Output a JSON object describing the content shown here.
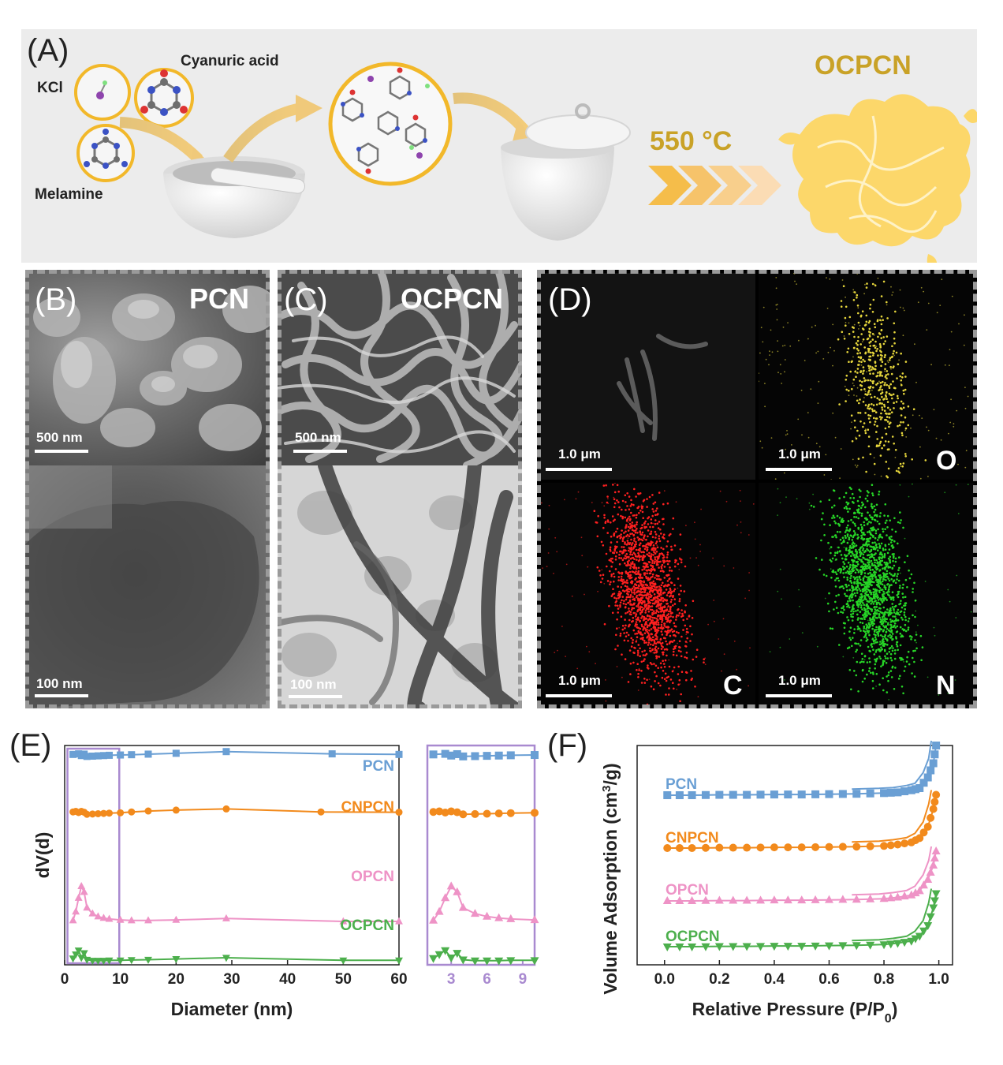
{
  "panels": {
    "a": {
      "label": "(A)",
      "kcl": "KCl",
      "cyanuric": "Cyanuric acid",
      "melamine": "Melamine",
      "temp": "550 °C",
      "product": "OCPCN"
    },
    "b": {
      "label": "(B)",
      "title": "PCN",
      "sem_scale": "500 nm",
      "tem_scale": "100 nm"
    },
    "c": {
      "label": "(C)",
      "title": "OCPCN",
      "sem_scale": "500 nm",
      "tem_scale": "100 nm"
    },
    "d": {
      "label": "(D)",
      "scale": "1.0 μm",
      "elements": [
        "O",
        "C",
        "N"
      ]
    },
    "e": {
      "label": "(E)"
    },
    "f": {
      "label": "(F)"
    }
  },
  "colors": {
    "PCN": "#6a9fd4",
    "CNPCN": "#f28a1c",
    "OPCN": "#ee93c6",
    "OCPCN": "#4caf4c",
    "inset_box": "#a98ad0",
    "gold": "#c9a227",
    "product_fill": "#fcd76a"
  },
  "chart_data": [
    {
      "panel": "E",
      "type": "line",
      "xlabel": "Diameter (nm)",
      "ylabel": "dV(d)",
      "xlim": [
        0,
        60
      ],
      "xticks": [
        0,
        10,
        20,
        30,
        40,
        50,
        60
      ],
      "y_ticks_shown": false,
      "series": [
        {
          "name": "PCN",
          "marker": "square",
          "x": [
            1.5,
            2.5,
            3,
            3.5,
            4,
            5,
            6,
            7,
            8,
            10,
            12,
            15,
            20,
            29,
            48,
            60
          ],
          "y": [
            0.88,
            0.9,
            0.84,
            0.89,
            0.81,
            0.82,
            0.83,
            0.84,
            0.85,
            0.86,
            0.87,
            0.89,
            0.92,
            0.98,
            0.9,
            0.88
          ]
        },
        {
          "name": "CNPCN",
          "marker": "circle",
          "x": [
            1.5,
            2,
            2.5,
            3,
            3.5,
            4,
            5,
            6,
            7,
            8,
            10,
            12,
            15,
            20,
            29,
            46,
            60
          ],
          "y": [
            0.6,
            0.62,
            0.58,
            0.62,
            0.59,
            0.52,
            0.53,
            0.54,
            0.55,
            0.56,
            0.57,
            0.6,
            0.63,
            0.66,
            0.7,
            0.6,
            0.59
          ]
        },
        {
          "name": "OPCN",
          "marker": "triangle-up",
          "x": [
            1.5,
            2,
            2.5,
            3,
            3.5,
            4,
            5,
            6,
            7,
            8,
            10,
            12,
            15,
            20,
            29,
            50,
            60
          ],
          "y": [
            0.02,
            0.2,
            0.48,
            0.72,
            0.6,
            0.28,
            0.16,
            0.1,
            0.07,
            0.05,
            0.03,
            0.02,
            0.02,
            0.03,
            0.06,
            0.0,
            0.0
          ]
        },
        {
          "name": "OCPCN",
          "marker": "triangle-down",
          "x": [
            1.5,
            2,
            2.5,
            3,
            3.5,
            4,
            5,
            6,
            7,
            8,
            10,
            12,
            15,
            20,
            29,
            50,
            60
          ],
          "y": [
            0.1,
            0.22,
            0.34,
            0.12,
            0.26,
            0.06,
            0.03,
            0.03,
            0.03,
            0.04,
            0.04,
            0.05,
            0.06,
            0.08,
            0.12,
            0.04,
            0.04
          ]
        }
      ],
      "inset": {
        "xlim": [
          1,
          10
        ],
        "xticks": [
          3,
          6,
          9
        ]
      }
    },
    {
      "panel": "F",
      "type": "line",
      "xlabel": "Relative Pressure (P/P0)",
      "ylabel": "Volume Adsorption (cm3/g)",
      "xlim": [
        -0.1,
        1.05
      ],
      "xticks": [
        0.0,
        0.2,
        0.4,
        0.6,
        0.8,
        1.0
      ],
      "xtick_labels": [
        "0.0",
        "0.2",
        "0.4",
        "0.6",
        "0.8",
        "1.0"
      ],
      "y_ticks_shown": false,
      "series": [
        {
          "name": "PCN",
          "marker": "square",
          "offset": 3,
          "x": [
            0.01,
            0.1,
            0.2,
            0.3,
            0.4,
            0.5,
            0.6,
            0.7,
            0.8,
            0.85,
            0.9,
            0.93,
            0.96,
            0.98,
            0.99
          ],
          "y": [
            0.0,
            0.0,
            0.005,
            0.005,
            0.01,
            0.01,
            0.015,
            0.02,
            0.03,
            0.04,
            0.07,
            0.1,
            0.25,
            0.45,
            0.7
          ]
        },
        {
          "name": "CNPCN",
          "marker": "circle",
          "offset": 2,
          "x": [
            0.01,
            0.1,
            0.2,
            0.3,
            0.4,
            0.5,
            0.6,
            0.7,
            0.8,
            0.85,
            0.9,
            0.93,
            0.96,
            0.98,
            0.99
          ],
          "y": [
            0.0,
            0.0,
            0.005,
            0.005,
            0.01,
            0.01,
            0.015,
            0.02,
            0.03,
            0.05,
            0.08,
            0.14,
            0.3,
            0.55,
            0.75
          ]
        },
        {
          "name": "OPCN",
          "marker": "triangle-up",
          "offset": 1,
          "x": [
            0.01,
            0.1,
            0.2,
            0.3,
            0.4,
            0.5,
            0.6,
            0.7,
            0.8,
            0.85,
            0.9,
            0.93,
            0.96,
            0.98,
            0.99
          ],
          "y": [
            0.0,
            0.0,
            0.005,
            0.005,
            0.01,
            0.01,
            0.015,
            0.02,
            0.03,
            0.05,
            0.08,
            0.14,
            0.3,
            0.5,
            0.7
          ]
        },
        {
          "name": "OCPCN",
          "marker": "triangle-down",
          "offset": 0,
          "x": [
            0.01,
            0.1,
            0.2,
            0.3,
            0.4,
            0.5,
            0.6,
            0.7,
            0.8,
            0.85,
            0.9,
            0.93,
            0.96,
            0.98,
            0.99
          ],
          "y": [
            0.0,
            0.0,
            0.005,
            0.005,
            0.01,
            0.01,
            0.015,
            0.02,
            0.03,
            0.05,
            0.08,
            0.15,
            0.3,
            0.55,
            0.75
          ]
        }
      ]
    }
  ]
}
